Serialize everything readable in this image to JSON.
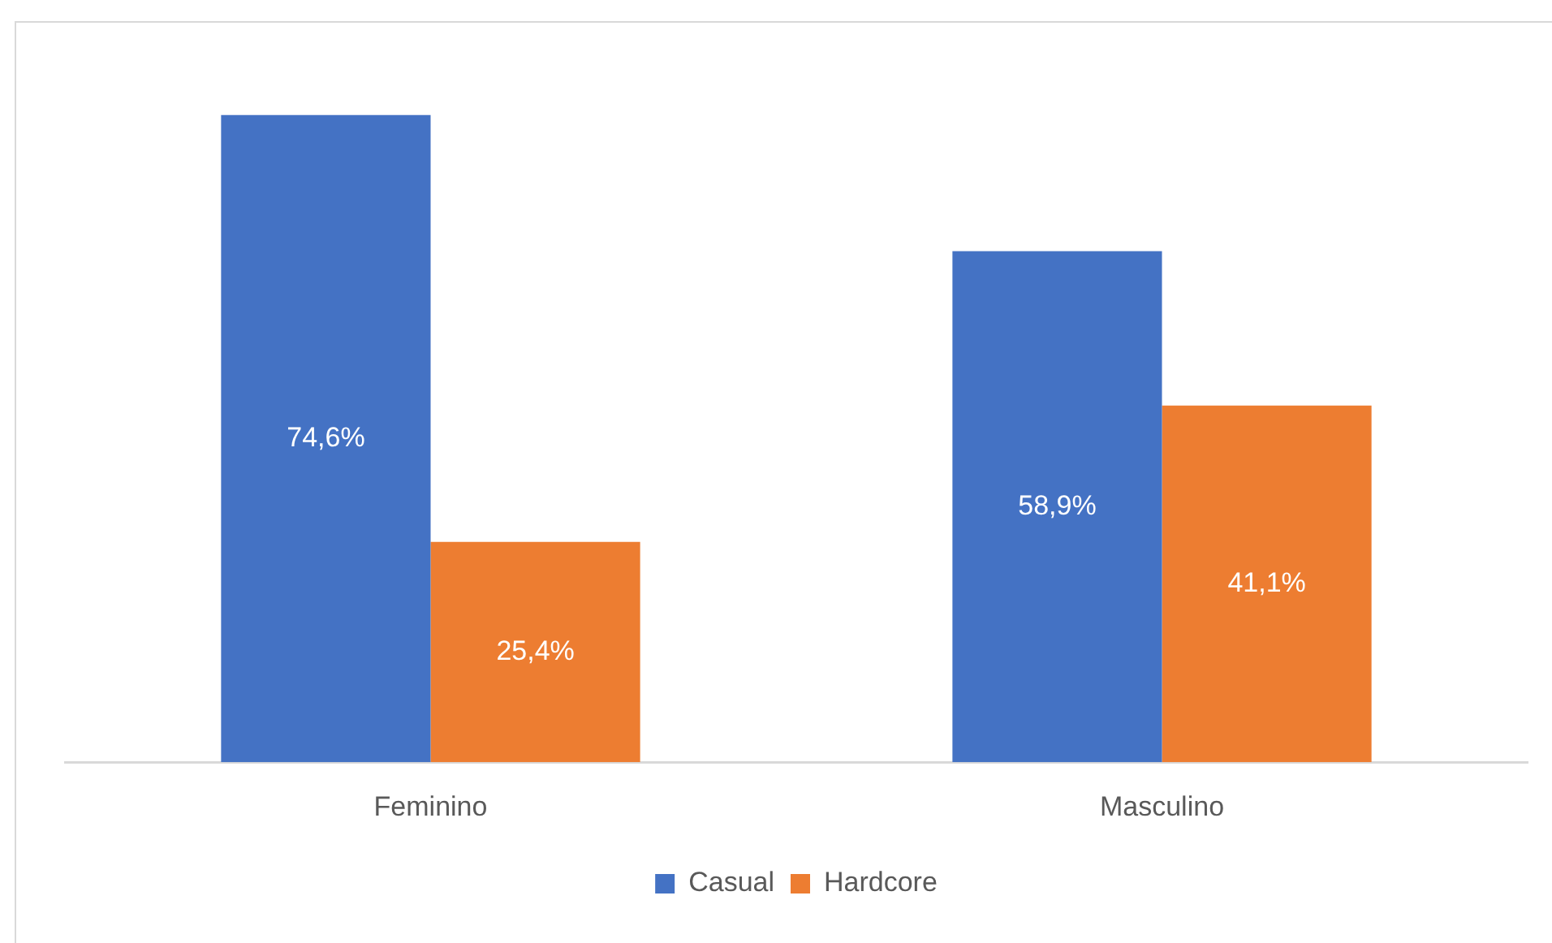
{
  "chart_data": {
    "type": "bar",
    "categories": [
      "Feminino",
      "Masculino"
    ],
    "series": [
      {
        "name": "Casual",
        "color": "#4472c4",
        "values": [
          74.6,
          58.9
        ],
        "value_labels": [
          "74,6%",
          "58,9%"
        ]
      },
      {
        "name": "Hardcore",
        "color": "#ed7d31",
        "values": [
          25.4,
          41.1
        ],
        "value_labels": [
          "25,4%",
          "41,1%"
        ]
      }
    ],
    "legend": "bottom",
    "tick_labels": "x"
  }
}
